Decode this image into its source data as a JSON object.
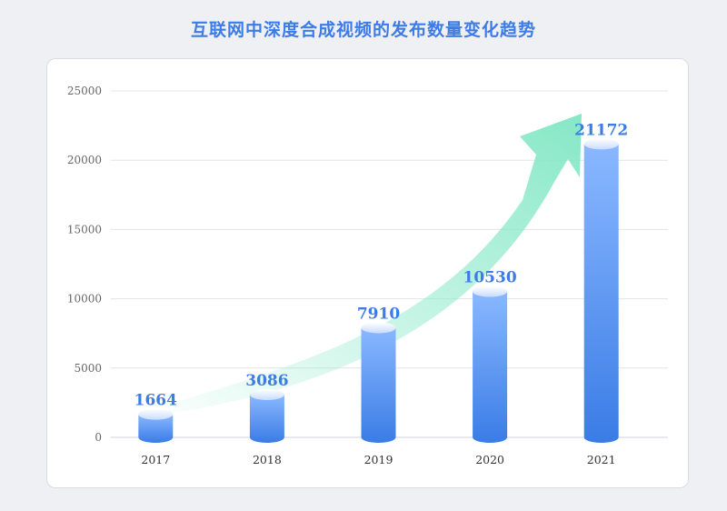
{
  "title": "互联网中深度合成视频的发布数量变化趋势",
  "colors": {
    "title": "#3d7ce8",
    "bar_top": "#8ab8ff",
    "bar_bottom": "#3a7ce6",
    "arrow": "#8eeacb",
    "label": "#3d7ce8"
  },
  "chart_data": {
    "type": "bar",
    "title": "互联网中深度合成视频的发布数量变化趋势",
    "xlabel": "",
    "ylabel": "",
    "categories": [
      "2017",
      "2018",
      "2019",
      "2020",
      "2021"
    ],
    "values": [
      1664,
      3086,
      7910,
      10530,
      21172
    ],
    "ylim": [
      0,
      25000
    ],
    "yticks": [
      0,
      5000,
      10000,
      15000,
      20000,
      25000
    ],
    "grid": true,
    "bar_style": "cylinder",
    "decoration": "rising-trend-arrow"
  }
}
